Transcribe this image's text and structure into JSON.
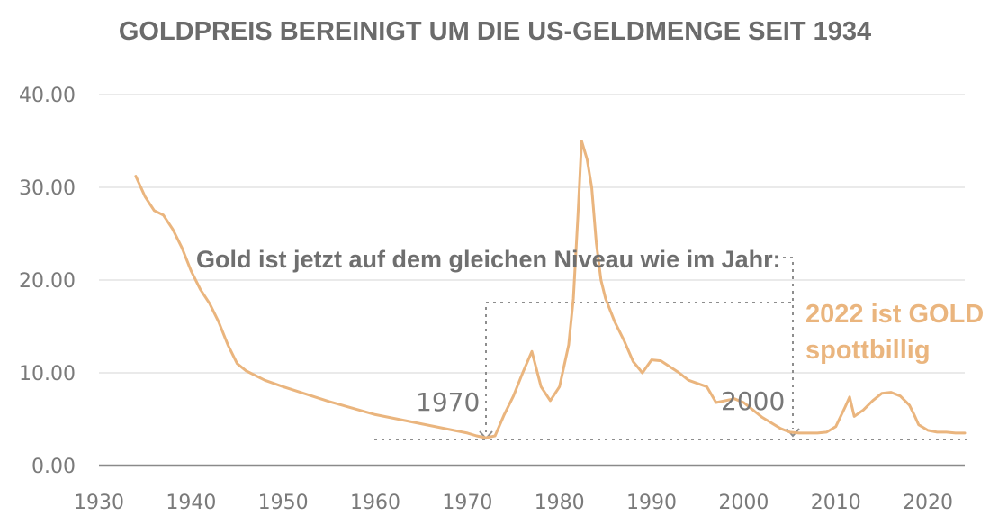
{
  "chart_data": {
    "type": "line",
    "title": "GOLDPREIS BEREINIGT UM DIE US-GELDMENGE SEIT 1934",
    "xlabel": "",
    "ylabel": "",
    "xlim": [
      1930,
      2024
    ],
    "ylim": [
      0,
      40
    ],
    "x_ticks": [
      "1930",
      "1940",
      "1950",
      "1960",
      "1970",
      "1980",
      "1990",
      "2000",
      "2010",
      "2020"
    ],
    "y_ticks": [
      "0.00",
      "10.00",
      "20.00",
      "30.00",
      "40.00"
    ],
    "grid": true,
    "color": "#eab57e",
    "series": [
      {
        "x": [
          1934,
          1935,
          1936,
          1937,
          1938,
          1939,
          1940,
          1941,
          1942,
          1943,
          1944,
          1945,
          1946,
          1948,
          1950,
          1955,
          1960,
          1965,
          1970,
          1971,
          1972,
          1973,
          1974,
          1975,
          1976,
          1977,
          1978,
          1979,
          1980,
          1981,
          1981.5,
          1982,
          1982.4,
          1983,
          1983.5,
          1984,
          1984.5,
          1985,
          1986,
          1987,
          1988,
          1989,
          1990,
          1991,
          1993,
          1994,
          1996,
          1997,
          1999,
          2000,
          2002,
          2004,
          2005,
          2006,
          2008,
          2009,
          2010,
          2011,
          2011.5,
          2012,
          2013,
          2014,
          2015,
          2016,
          2017,
          2018,
          2018.5,
          2019,
          2020,
          2021,
          2022,
          2023,
          2024
        ],
        "values": [
          31.2,
          29.0,
          27.5,
          27.0,
          25.5,
          23.5,
          21.0,
          19.0,
          17.5,
          15.5,
          13.0,
          11.0,
          10.2,
          9.2,
          8.5,
          6.9,
          5.5,
          4.5,
          3.5,
          3.2,
          3.0,
          3.2,
          5.5,
          7.5,
          10.0,
          12.3,
          8.5,
          7.0,
          8.5,
          13.0,
          18.0,
          27.0,
          35.0,
          33.0,
          30.0,
          24.0,
          20.0,
          18.0,
          15.5,
          13.5,
          11.2,
          10.0,
          11.4,
          11.3,
          10.0,
          9.2,
          8.5,
          6.8,
          7.2,
          6.8,
          5.2,
          4.0,
          3.6,
          3.5,
          3.5,
          3.6,
          4.2,
          6.3,
          7.4,
          5.3,
          6.0,
          7.0,
          7.8,
          7.9,
          7.5,
          6.5,
          5.5,
          4.4,
          3.8,
          3.6,
          3.6,
          3.5,
          3.5
        ]
      }
    ],
    "annotations": {
      "headline": "Gold ist jetzt auf dem gleichen Niveau wie im Jahr:",
      "year_1970": "1970",
      "year_2000": "2000",
      "promo_line1": "2022 ist GOLD",
      "promo_line2": "spottbillig"
    }
  }
}
